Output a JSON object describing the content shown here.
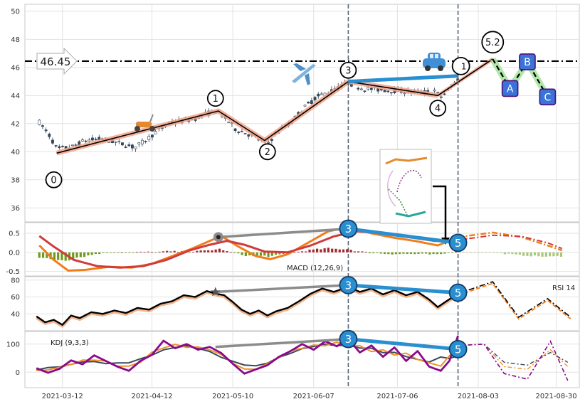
{
  "chart_data": [
    {
      "type": "candlestick",
      "panel": "price",
      "ylim": [
        35,
        50.5
      ],
      "yticks": [
        36,
        38,
        40,
        42,
        44,
        46,
        48,
        50
      ],
      "xlim": [
        "2021-02-27",
        "2021-09-07"
      ],
      "xticks": [
        "2021-03-12",
        "2021-04-12",
        "2021-05-10",
        "2021-06-07",
        "2021-07-06",
        "2021-08-03",
        "2021-08-30"
      ],
      "hline": {
        "value": 46.45,
        "label": "46.45"
      },
      "vlines": [
        "2021-06-19",
        "2021-07-27"
      ],
      "close_path": [
        {
          "x": "2021-03-04",
          "y": 42.1
        },
        {
          "x": "2021-03-08",
          "y": 41.0
        },
        {
          "x": "2021-03-10",
          "y": 40.2
        },
        {
          "x": "2021-03-15",
          "y": 40.3
        },
        {
          "x": "2021-03-20",
          "y": 40.8
        },
        {
          "x": "2021-03-26",
          "y": 40.9
        },
        {
          "x": "2021-04-01",
          "y": 40.6
        },
        {
          "x": "2021-04-06",
          "y": 40.3
        },
        {
          "x": "2021-04-09",
          "y": 40.7
        },
        {
          "x": "2021-04-14",
          "y": 41.5
        },
        {
          "x": "2021-04-19",
          "y": 42.1
        },
        {
          "x": "2021-04-26",
          "y": 42.3
        },
        {
          "x": "2021-05-01",
          "y": 42.7
        },
        {
          "x": "2021-05-04",
          "y": 42.9
        },
        {
          "x": "2021-05-07",
          "y": 42.5
        },
        {
          "x": "2021-05-11",
          "y": 41.6
        },
        {
          "x": "2021-05-16",
          "y": 41.2
        },
        {
          "x": "2021-05-19",
          "y": 40.9
        },
        {
          "x": "2021-05-22",
          "y": 40.6
        },
        {
          "x": "2021-05-26",
          "y": 41.5
        },
        {
          "x": "2021-05-30",
          "y": 42.0
        },
        {
          "x": "2021-06-03",
          "y": 43.0
        },
        {
          "x": "2021-06-08",
          "y": 43.9
        },
        {
          "x": "2021-06-13",
          "y": 44.3
        },
        {
          "x": "2021-06-19",
          "y": 44.9
        },
        {
          "x": "2021-06-24",
          "y": 44.5
        },
        {
          "x": "2021-07-01",
          "y": 44.4
        },
        {
          "x": "2021-07-08",
          "y": 44.3
        },
        {
          "x": "2021-07-14",
          "y": 44.2
        },
        {
          "x": "2021-07-19",
          "y": 44.3
        },
        {
          "x": "2021-07-21",
          "y": 43.9
        },
        {
          "x": "2021-07-24",
          "y": 44.4
        },
        {
          "x": "2021-07-27",
          "y": 45.2
        }
      ],
      "zigzag": [
        {
          "x": "2021-03-10",
          "y": 39.9,
          "label": "0",
          "lx": "2021-03-09",
          "ly": 38.0
        },
        {
          "x": "2021-05-05",
          "y": 42.9,
          "label": "1",
          "lx": "2021-05-04",
          "ly": 43.8
        },
        {
          "x": "2021-05-21",
          "y": 40.8,
          "label": "2",
          "lx": "2021-05-22",
          "ly": 40.0
        },
        {
          "x": "2021-06-19",
          "y": 45.0,
          "label": "3",
          "lx": "2021-06-19",
          "ly": 45.8
        },
        {
          "x": "2021-07-20",
          "y": 44.0,
          "label": "4",
          "lx": "2021-07-20",
          "ly": 43.1
        },
        {
          "x": "2021-08-08",
          "y": 46.6,
          "label": "5.2",
          "lx": "2021-08-08",
          "ly": 47.8
        }
      ],
      "hidden_label": {
        "x": "2021-07-28",
        "y": 46.1,
        "label": "1"
      },
      "divergence_line": [
        {
          "x": "2021-06-19",
          "y": 45.0
        },
        {
          "x": "2021-07-27",
          "y": 45.4
        }
      ],
      "forecast": [
        {
          "x": "2021-08-08",
          "y": 46.6
        },
        {
          "x": "2021-08-14",
          "y": 44.5,
          "label": "A"
        },
        {
          "x": "2021-08-20",
          "y": 46.4,
          "label": "B"
        },
        {
          "x": "2021-08-27",
          "y": 43.9,
          "label": "C"
        }
      ],
      "icons": [
        "scooter-icon",
        "airplane-icon",
        "car-icon",
        "chart-thumbnail-icon"
      ]
    },
    {
      "type": "macd",
      "panel": "macd",
      "label": "MACD (12,26,9)",
      "ylim": [
        -0.62,
        0.78
      ],
      "yticks": [
        -0.5,
        0.0,
        0.5
      ],
      "macd_line": [
        {
          "x": "2021-03-04",
          "y": 0.18
        },
        {
          "x": "2021-03-09",
          "y": -0.2
        },
        {
          "x": "2021-03-14",
          "y": -0.48
        },
        {
          "x": "2021-03-20",
          "y": -0.46
        },
        {
          "x": "2021-03-28",
          "y": -0.38
        },
        {
          "x": "2021-04-05",
          "y": -0.4
        },
        {
          "x": "2021-04-12",
          "y": -0.3
        },
        {
          "x": "2021-04-19",
          "y": -0.1
        },
        {
          "x": "2021-04-26",
          "y": 0.1
        },
        {
          "x": "2021-05-02",
          "y": 0.3
        },
        {
          "x": "2021-05-06",
          "y": 0.43
        },
        {
          "x": "2021-05-12",
          "y": 0.15
        },
        {
          "x": "2021-05-18",
          "y": -0.1
        },
        {
          "x": "2021-05-23",
          "y": -0.18
        },
        {
          "x": "2021-05-29",
          "y": -0.05
        },
        {
          "x": "2021-06-05",
          "y": 0.25
        },
        {
          "x": "2021-06-12",
          "y": 0.55
        },
        {
          "x": "2021-06-19",
          "y": 0.66
        },
        {
          "x": "2021-06-27",
          "y": 0.5
        },
        {
          "x": "2021-07-05",
          "y": 0.38
        },
        {
          "x": "2021-07-12",
          "y": 0.3
        },
        {
          "x": "2021-07-20",
          "y": 0.18
        },
        {
          "x": "2021-07-27",
          "y": 0.4
        }
      ],
      "signal_line": [
        {
          "x": "2021-03-04",
          "y": 0.43
        },
        {
          "x": "2021-03-09",
          "y": 0.15
        },
        {
          "x": "2021-03-16",
          "y": -0.2
        },
        {
          "x": "2021-03-24",
          "y": -0.36
        },
        {
          "x": "2021-04-01",
          "y": -0.4
        },
        {
          "x": "2021-04-09",
          "y": -0.36
        },
        {
          "x": "2021-04-17",
          "y": -0.2
        },
        {
          "x": "2021-04-25",
          "y": 0.05
        },
        {
          "x": "2021-05-02",
          "y": 0.2
        },
        {
          "x": "2021-05-08",
          "y": 0.3
        },
        {
          "x": "2021-05-14",
          "y": 0.2
        },
        {
          "x": "2021-05-21",
          "y": 0.02
        },
        {
          "x": "2021-05-29",
          "y": 0.0
        },
        {
          "x": "2021-06-06",
          "y": 0.18
        },
        {
          "x": "2021-06-14",
          "y": 0.42
        },
        {
          "x": "2021-06-22",
          "y": 0.55
        },
        {
          "x": "2021-07-01",
          "y": 0.5
        },
        {
          "x": "2021-07-10",
          "y": 0.4
        },
        {
          "x": "2021-07-19",
          "y": 0.3
        },
        {
          "x": "2021-07-27",
          "y": 0.32
        }
      ],
      "forecast_macd": [
        {
          "x": "2021-07-27",
          "y": 0.4
        },
        {
          "x": "2021-08-08",
          "y": 0.52
        },
        {
          "x": "2021-08-18",
          "y": 0.4
        },
        {
          "x": "2021-08-27",
          "y": 0.18
        },
        {
          "x": "2021-09-01",
          "y": 0.05
        }
      ],
      "forecast_signal": [
        {
          "x": "2021-07-27",
          "y": 0.32
        },
        {
          "x": "2021-08-08",
          "y": 0.45
        },
        {
          "x": "2021-08-18",
          "y": 0.42
        },
        {
          "x": "2021-08-27",
          "y": 0.25
        },
        {
          "x": "2021-09-01",
          "y": 0.1
        }
      ],
      "divergence": [
        {
          "x": "2021-05-05",
          "y": 0.4,
          "label": ""
        },
        {
          "x": "2021-06-19",
          "y": 0.62,
          "label": "3"
        },
        {
          "x": "2021-07-27",
          "y": 0.25,
          "label": "5"
        }
      ]
    },
    {
      "type": "line",
      "panel": "rsi",
      "label": "RSI 14",
      "ylim": [
        20,
        84
      ],
      "yticks": [
        40,
        60,
        80
      ],
      "rsi": [
        {
          "x": "2021-03-03",
          "y": 37
        },
        {
          "x": "2021-03-06",
          "y": 30
        },
        {
          "x": "2021-03-09",
          "y": 33
        },
        {
          "x": "2021-03-12",
          "y": 27
        },
        {
          "x": "2021-03-15",
          "y": 38
        },
        {
          "x": "2021-03-18",
          "y": 35
        },
        {
          "x": "2021-03-22",
          "y": 42
        },
        {
          "x": "2021-03-26",
          "y": 40
        },
        {
          "x": "2021-03-30",
          "y": 44
        },
        {
          "x": "2021-04-03",
          "y": 41
        },
        {
          "x": "2021-04-07",
          "y": 47
        },
        {
          "x": "2021-04-11",
          "y": 45
        },
        {
          "x": "2021-04-15",
          "y": 52
        },
        {
          "x": "2021-04-19",
          "y": 55
        },
        {
          "x": "2021-04-23",
          "y": 62
        },
        {
          "x": "2021-04-27",
          "y": 60
        },
        {
          "x": "2021-05-01",
          "y": 67
        },
        {
          "x": "2021-05-04",
          "y": 64
        },
        {
          "x": "2021-05-07",
          "y": 62
        },
        {
          "x": "2021-05-10",
          "y": 54
        },
        {
          "x": "2021-05-13",
          "y": 45
        },
        {
          "x": "2021-05-16",
          "y": 40
        },
        {
          "x": "2021-05-19",
          "y": 44
        },
        {
          "x": "2021-05-22",
          "y": 38
        },
        {
          "x": "2021-05-25",
          "y": 43
        },
        {
          "x": "2021-05-29",
          "y": 47
        },
        {
          "x": "2021-06-02",
          "y": 55
        },
        {
          "x": "2021-06-06",
          "y": 64
        },
        {
          "x": "2021-06-10",
          "y": 70
        },
        {
          "x": "2021-06-14",
          "y": 66
        },
        {
          "x": "2021-06-19",
          "y": 72
        },
        {
          "x": "2021-06-23",
          "y": 66
        },
        {
          "x": "2021-06-27",
          "y": 70
        },
        {
          "x": "2021-07-01",
          "y": 63
        },
        {
          "x": "2021-07-05",
          "y": 68
        },
        {
          "x": "2021-07-09",
          "y": 62
        },
        {
          "x": "2021-07-13",
          "y": 66
        },
        {
          "x": "2021-07-17",
          "y": 57
        },
        {
          "x": "2021-07-20",
          "y": 48
        },
        {
          "x": "2021-07-23",
          "y": 55
        },
        {
          "x": "2021-07-27",
          "y": 64
        }
      ],
      "forecast": [
        {
          "x": "2021-07-27",
          "y": 64
        },
        {
          "x": "2021-08-08",
          "y": 78
        },
        {
          "x": "2021-08-17",
          "y": 36
        },
        {
          "x": "2021-08-27",
          "y": 58
        },
        {
          "x": "2021-09-04",
          "y": 36
        }
      ],
      "divergence": [
        {
          "x": "2021-05-04",
          "y": 66,
          "label": ""
        },
        {
          "x": "2021-06-19",
          "y": 74,
          "label": "3"
        },
        {
          "x": "2021-07-27",
          "y": 65,
          "label": "5"
        }
      ]
    },
    {
      "type": "line",
      "panel": "kdj",
      "label": "KDJ (9,3,3)",
      "ylim": [
        -55,
        145
      ],
      "yticks": [
        0,
        100
      ],
      "j": [
        {
          "x": "2021-03-03",
          "y": 14
        },
        {
          "x": "2021-03-07",
          "y": -2
        },
        {
          "x": "2021-03-11",
          "y": 12
        },
        {
          "x": "2021-03-15",
          "y": 42
        },
        {
          "x": "2021-03-19",
          "y": 28
        },
        {
          "x": "2021-03-23",
          "y": 60
        },
        {
          "x": "2021-03-27",
          "y": 40
        },
        {
          "x": "2021-03-31",
          "y": 20
        },
        {
          "x": "2021-04-04",
          "y": 5
        },
        {
          "x": "2021-04-08",
          "y": 40
        },
        {
          "x": "2021-04-12",
          "y": 62
        },
        {
          "x": "2021-04-16",
          "y": 112
        },
        {
          "x": "2021-04-20",
          "y": 85
        },
        {
          "x": "2021-04-24",
          "y": 100
        },
        {
          "x": "2021-04-28",
          "y": 80
        },
        {
          "x": "2021-05-02",
          "y": 90
        },
        {
          "x": "2021-05-06",
          "y": 68
        },
        {
          "x": "2021-05-10",
          "y": 30
        },
        {
          "x": "2021-05-14",
          "y": -5
        },
        {
          "x": "2021-05-18",
          "y": 10
        },
        {
          "x": "2021-05-22",
          "y": 25
        },
        {
          "x": "2021-05-26",
          "y": 55
        },
        {
          "x": "2021-05-30",
          "y": 75
        },
        {
          "x": "2021-06-03",
          "y": 100
        },
        {
          "x": "2021-06-07",
          "y": 80
        },
        {
          "x": "2021-06-11",
          "y": 110
        },
        {
          "x": "2021-06-15",
          "y": 92
        },
        {
          "x": "2021-06-19",
          "y": 118
        },
        {
          "x": "2021-06-23",
          "y": 70
        },
        {
          "x": "2021-06-27",
          "y": 95
        },
        {
          "x": "2021-07-01",
          "y": 55
        },
        {
          "x": "2021-07-05",
          "y": 88
        },
        {
          "x": "2021-07-09",
          "y": 40
        },
        {
          "x": "2021-07-13",
          "y": 75
        },
        {
          "x": "2021-07-17",
          "y": 20
        },
        {
          "x": "2021-07-21",
          "y": 5
        },
        {
          "x": "2021-07-24",
          "y": 40
        },
        {
          "x": "2021-07-27",
          "y": 130
        }
      ],
      "forecast_k": [
        {
          "x": "2021-07-27",
          "y": 95
        },
        {
          "x": "2021-08-05",
          "y": 100
        },
        {
          "x": "2021-08-12",
          "y": 20
        },
        {
          "x": "2021-08-20",
          "y": 10
        },
        {
          "x": "2021-08-28",
          "y": 80
        },
        {
          "x": "2021-09-03",
          "y": 20
        }
      ],
      "forecast_d": [
        {
          "x": "2021-07-27",
          "y": 95
        },
        {
          "x": "2021-08-05",
          "y": 100
        },
        {
          "x": "2021-08-12",
          "y": 35
        },
        {
          "x": "2021-08-20",
          "y": 25
        },
        {
          "x": "2021-08-28",
          "y": 70
        },
        {
          "x": "2021-09-03",
          "y": 35
        }
      ],
      "forecast_j": [
        {
          "x": "2021-07-27",
          "y": 95
        },
        {
          "x": "2021-08-05",
          "y": 100
        },
        {
          "x": "2021-08-12",
          "y": -5
        },
        {
          "x": "2021-08-20",
          "y": -25
        },
        {
          "x": "2021-08-28",
          "y": 110
        },
        {
          "x": "2021-09-03",
          "y": -30
        }
      ],
      "divergence": [
        {
          "x": "2021-05-04",
          "y": 90,
          "label": ""
        },
        {
          "x": "2021-06-19",
          "y": 118,
          "label": "3"
        },
        {
          "x": "2021-07-27",
          "y": 82,
          "label": "5"
        }
      ]
    }
  ]
}
